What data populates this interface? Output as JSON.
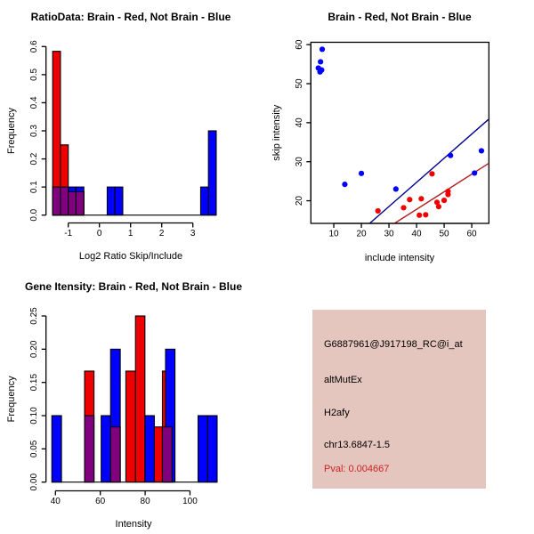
{
  "figure_background": "#ffffff",
  "colors": {
    "red": "#EE0000",
    "blue": "#0000FF",
    "purple": "#800080",
    "navy_line": "#000090",
    "darkred_line": "#B22222",
    "pink_panel": "#E5C6BE",
    "pval_red": "#CC2222",
    "axis_black": "#000000"
  },
  "chart_data": [
    {
      "type": "bar",
      "subtype": "overlaid-histogram",
      "title": "RatioData: Brain - Red, Not Brain - Blue",
      "xlabel": "Log2 Ratio Skip/Include",
      "ylabel": "Frequency",
      "xlim": [
        -1.7,
        3.75
      ],
      "ylim": [
        0,
        0.6
      ],
      "xticks": [
        -1,
        0,
        1,
        2,
        3
      ],
      "xtick_labels": [
        "-1",
        "0",
        "1",
        "2",
        "3"
      ],
      "yticks": [
        0,
        0.1,
        0.2,
        0.3,
        0.4,
        0.5,
        0.6
      ],
      "ytick_labels": [
        "0.0",
        "0.1",
        "0.2",
        "0.3",
        "0.4",
        "0.5",
        "0.6"
      ],
      "baseline_x": [
        -1.5,
        3.75
      ],
      "legend_note": "Brain - Red, Not Brain - Blue, overlap - purple",
      "series": [
        {
          "name": "Brain",
          "color": "red",
          "bars": [
            [
              -1.5,
              -1.25,
              0.583
            ],
            [
              -1.25,
              -1.0,
              0.25
            ],
            [
              -1.0,
              -0.75,
              0.083
            ],
            [
              -0.75,
              -0.5,
              0.083
            ]
          ]
        },
        {
          "name": "Not Brain",
          "color": "blue",
          "bars": [
            [
              -1.5,
              -1.25,
              0.1
            ],
            [
              -1.25,
              -1.0,
              0.1
            ],
            [
              -1.0,
              -0.75,
              0.1
            ],
            [
              -0.75,
              -0.5,
              0.1
            ],
            [
              0.25,
              0.5,
              0.1
            ],
            [
              0.5,
              0.75,
              0.1
            ],
            [
              3.25,
              3.5,
              0.1
            ],
            [
              3.5,
              3.75,
              0.3
            ]
          ]
        },
        {
          "name": "Overlap",
          "color": "purple",
          "bars": [
            [
              -1.5,
              -1.25,
              0.1
            ],
            [
              -1.25,
              -1.0,
              0.1
            ],
            [
              -1.0,
              -0.75,
              0.083
            ],
            [
              -0.75,
              -0.5,
              0.083
            ]
          ]
        }
      ]
    },
    {
      "type": "scatter",
      "title": "Brain - Red, Not Brain - Blue",
      "xlabel": "include intensity",
      "ylabel": "skip intensity",
      "xlim": [
        2,
        66
      ],
      "ylim": [
        14,
        60.5
      ],
      "xticks": [
        10,
        20,
        30,
        40,
        50,
        60
      ],
      "xtick_labels": [
        "10",
        "20",
        "30",
        "40",
        "50",
        "60"
      ],
      "yticks": [
        20,
        30,
        40,
        50,
        60
      ],
      "ytick_labels": [
        "20",
        "30",
        "40",
        "50",
        "60"
      ],
      "series": [
        {
          "name": "Not Brain",
          "color": "blue",
          "points": [
            [
              5.8,
              58.8
            ],
            [
              5.2,
              55.6
            ],
            [
              4.4,
              54.0
            ],
            [
              5.6,
              53.5
            ],
            [
              5.0,
              53.0
            ],
            [
              14,
              24.2
            ],
            [
              20,
              27
            ],
            [
              32.5,
              23
            ],
            [
              52.3,
              31.6
            ],
            [
              61,
              27.1
            ],
            [
              63.5,
              32.8
            ]
          ]
        },
        {
          "name": "Brain",
          "color": "red",
          "points": [
            [
              26,
              17.4
            ],
            [
              35.3,
              18.2
            ],
            [
              37.5,
              20.3
            ],
            [
              41,
              16.3
            ],
            [
              43.3,
              16.4
            ],
            [
              41.7,
              20.5
            ],
            [
              45.6,
              26.9
            ],
            [
              47.4,
              19.6
            ],
            [
              48,
              18.5
            ],
            [
              50,
              20.1
            ],
            [
              51.4,
              21.6
            ],
            [
              51.4,
              22.4
            ]
          ]
        }
      ],
      "lines": [
        {
          "name": "not-brain-fit",
          "color": "navy_line",
          "x1": 23,
          "y1": 14.2,
          "x2": 66,
          "y2": 40.8
        },
        {
          "name": "brain-fit",
          "color": "darkred_line",
          "x1": 32,
          "y1": 14.2,
          "x2": 66.2,
          "y2": 29.6
        }
      ]
    },
    {
      "type": "bar",
      "subtype": "overlaid-histogram",
      "title": "Gene Itensity: Brain - Red, Not Brain - Blue",
      "xlabel": "Intensity",
      "ylabel": "Frequency",
      "xlim": [
        36,
        114
      ],
      "ylim": [
        0,
        0.25
      ],
      "xticks": [
        40,
        60,
        80,
        100
      ],
      "xtick_labels": [
        "40",
        "60",
        "80",
        "100"
      ],
      "yticks": [
        0,
        0.05,
        0.1,
        0.15,
        0.2,
        0.25
      ],
      "ytick_labels": [
        "0.00",
        "0.05",
        "0.10",
        "0.15",
        "0.20",
        "0.25"
      ],
      "baseline_x": [
        38.4,
        112.1
      ],
      "legend_note": "Brain - Red, Not Brain - Blue, overlap - purple",
      "series": [
        {
          "name": "Brain",
          "color": "red",
          "bars": [
            [
              53.0,
              57.2,
              0.167
            ],
            [
              71.4,
              75.7,
              0.167
            ],
            [
              75.7,
              79.9,
              0.25
            ],
            [
              83.5,
              87.7,
              0.083
            ],
            [
              87.7,
              92.0,
              0.167
            ]
          ]
        },
        {
          "name": "Not Brain",
          "color": "blue",
          "bars": [
            [
              38.4,
              42.7,
              0.1
            ],
            [
              60.4,
              64.6,
              0.1
            ],
            [
              64.6,
              68.9,
              0.2
            ],
            [
              79.9,
              84.1,
              0.1
            ],
            [
              89.1,
              93.3,
              0.2
            ],
            [
              103.6,
              107.9,
              0.1
            ],
            [
              107.9,
              112.1,
              0.1
            ]
          ]
        },
        {
          "name": "Overlap",
          "color": "purple",
          "bars": [
            [
              53.0,
              57.2,
              0.1
            ],
            [
              64.6,
              68.9,
              0.083
            ],
            [
              87.7,
              92.0,
              0.083
            ]
          ]
        }
      ]
    },
    {
      "type": "text-panel",
      "background": "#E5C6BE",
      "lines": [
        "G6887961@J917198_RC@i_at",
        "altMutEx",
        "H2afy",
        "chr13.6847-1.5",
        "Pval: 0.004667"
      ]
    }
  ]
}
